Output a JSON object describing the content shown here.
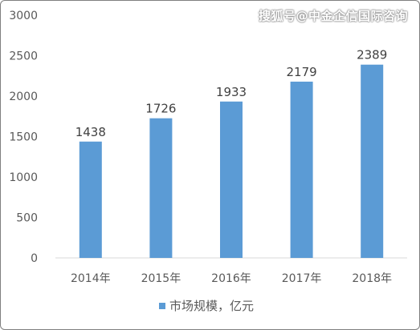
{
  "watermark": "搜狐号@中金企信国际咨询",
  "chart_data": {
    "type": "bar",
    "categories": [
      "2014年",
      "2015年",
      "2016年",
      "2017年",
      "2018年"
    ],
    "series": [
      {
        "name": "市场规模，亿元",
        "values": [
          1438,
          1726,
          1933,
          2179,
          2389
        ],
        "color": "#5b9bd5"
      }
    ],
    "y_ticks": [
      0,
      500,
      1000,
      1500,
      2000,
      2500,
      3000
    ],
    "ylim": [
      0,
      3000
    ],
    "grid": false,
    "data_labels": true,
    "legend_position": "bottom"
  }
}
